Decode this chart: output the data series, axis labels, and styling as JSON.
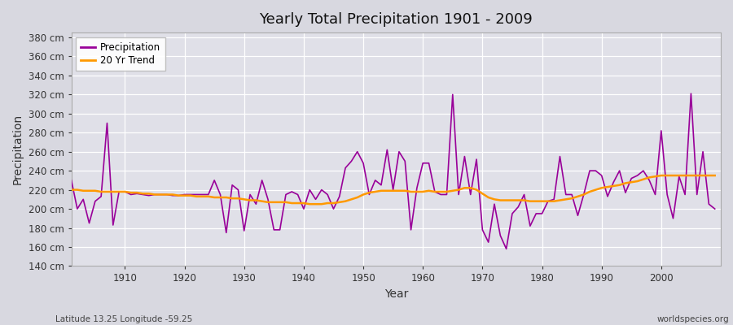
{
  "title": "Yearly Total Precipitation 1901 - 2009",
  "xlabel": "Year",
  "ylabel": "Precipitation",
  "subtitle": "Latitude 13.25 Longitude -59.25",
  "watermark": "worldspecies.org",
  "ylim": [
    140,
    385
  ],
  "yticks": [
    140,
    160,
    180,
    200,
    220,
    240,
    260,
    280,
    300,
    320,
    340,
    360,
    380
  ],
  "xticks": [
    1910,
    1920,
    1930,
    1940,
    1950,
    1960,
    1970,
    1980,
    1990,
    2000
  ],
  "bg_color": "#d8d8e0",
  "plot_bg_color": "#e0e0e8",
  "precip_color": "#990099",
  "trend_color": "#ff9900",
  "precip_linewidth": 1.2,
  "trend_linewidth": 1.8,
  "years": [
    1901,
    1902,
    1903,
    1904,
    1905,
    1906,
    1907,
    1908,
    1909,
    1910,
    1911,
    1912,
    1913,
    1914,
    1915,
    1916,
    1917,
    1918,
    1919,
    1920,
    1921,
    1922,
    1923,
    1924,
    1925,
    1926,
    1927,
    1928,
    1929,
    1930,
    1931,
    1932,
    1933,
    1934,
    1935,
    1936,
    1937,
    1938,
    1939,
    1940,
    1941,
    1942,
    1943,
    1944,
    1945,
    1946,
    1947,
    1948,
    1949,
    1950,
    1951,
    1952,
    1953,
    1954,
    1955,
    1956,
    1957,
    1958,
    1959,
    1960,
    1961,
    1962,
    1963,
    1964,
    1965,
    1966,
    1967,
    1968,
    1969,
    1970,
    1971,
    1972,
    1973,
    1974,
    1975,
    1976,
    1977,
    1978,
    1979,
    1980,
    1981,
    1982,
    1983,
    1984,
    1985,
    1986,
    1987,
    1988,
    1989,
    1990,
    1991,
    1992,
    1993,
    1994,
    1995,
    1996,
    1997,
    1998,
    1999,
    2000,
    2001,
    2002,
    2003,
    2004,
    2005,
    2006,
    2007,
    2008,
    2009
  ],
  "precip": [
    230,
    200,
    210,
    185,
    208,
    213,
    290,
    183,
    218,
    218,
    215,
    216,
    215,
    214,
    215,
    215,
    215,
    214,
    214,
    215,
    215,
    215,
    215,
    215,
    230,
    215,
    175,
    225,
    220,
    177,
    215,
    205,
    230,
    210,
    178,
    178,
    215,
    218,
    215,
    200,
    220,
    210,
    220,
    215,
    200,
    213,
    243,
    250,
    260,
    248,
    215,
    230,
    225,
    262,
    220,
    260,
    250,
    178,
    222,
    248,
    248,
    218,
    215,
    215,
    320,
    215,
    255,
    215,
    252,
    178,
    165,
    205,
    172,
    158,
    195,
    202,
    215,
    182,
    195,
    195,
    208,
    210,
    255,
    215,
    215,
    193,
    215,
    240,
    240,
    235,
    213,
    228,
    240,
    217,
    232,
    235,
    240,
    230,
    215,
    282,
    215,
    190,
    234,
    215,
    321,
    215,
    260,
    205,
    200
  ],
  "trend": [
    220,
    220,
    219,
    219,
    219,
    218,
    218,
    218,
    218,
    218,
    217,
    217,
    216,
    216,
    215,
    215,
    215,
    215,
    214,
    214,
    214,
    213,
    213,
    213,
    212,
    212,
    212,
    211,
    211,
    210,
    209,
    209,
    208,
    207,
    207,
    207,
    207,
    206,
    206,
    206,
    205,
    205,
    205,
    206,
    206,
    207,
    208,
    210,
    212,
    215,
    217,
    218,
    219,
    219,
    219,
    219,
    219,
    218,
    218,
    218,
    219,
    218,
    218,
    218,
    219,
    220,
    222,
    222,
    220,
    216,
    212,
    210,
    209,
    209,
    209,
    209,
    209,
    208,
    208,
    208,
    208,
    208,
    209,
    210,
    211,
    213,
    215,
    218,
    220,
    222,
    223,
    224,
    225,
    227,
    228,
    229,
    231,
    233,
    234,
    235,
    235,
    235,
    235,
    235,
    235,
    235,
    235,
    235,
    235
  ]
}
